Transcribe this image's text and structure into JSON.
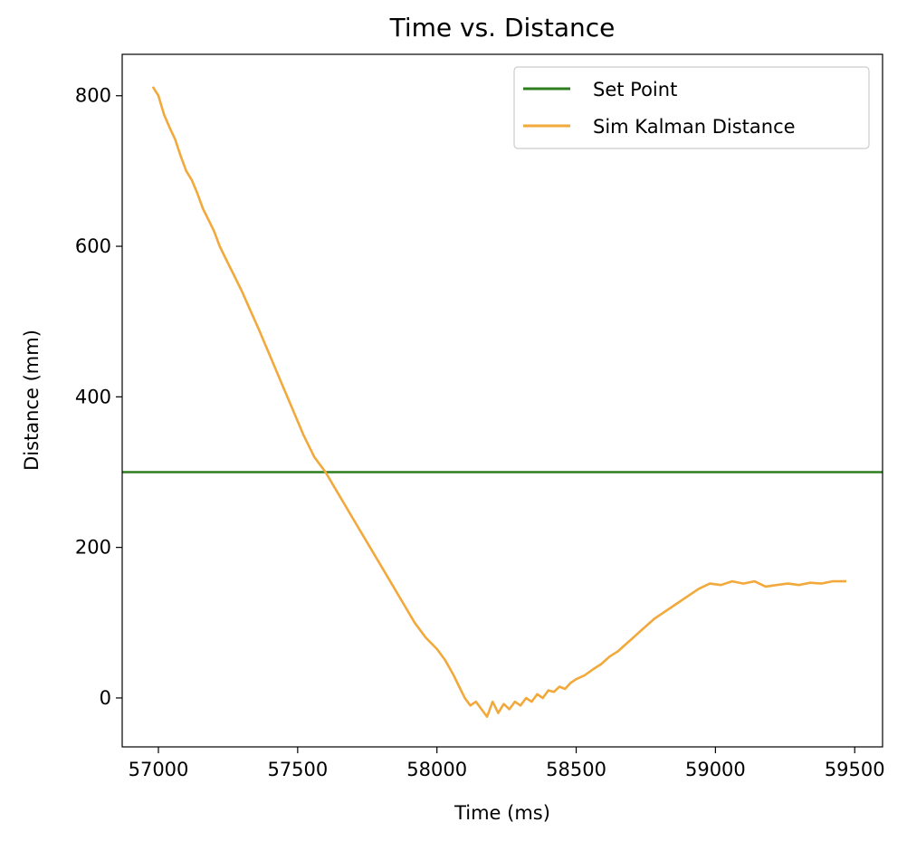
{
  "chart_data": {
    "type": "line",
    "title": "Time vs. Distance",
    "xlabel": "Time (ms)",
    "ylabel": "Distance (mm)",
    "xlim": [
      56870,
      59600
    ],
    "ylim": [
      -65,
      855
    ],
    "xticks": [
      57000,
      57500,
      58000,
      58500,
      59000,
      59500
    ],
    "yticks": [
      0,
      200,
      400,
      600,
      800
    ],
    "grid": false,
    "legend_position": "top-right",
    "series": [
      {
        "name": "Set Point",
        "color": "#2e7d1e",
        "kind": "hline",
        "x": [
          56870,
          59600
        ],
        "y": [
          300,
          300
        ]
      },
      {
        "name": "Sim Kalman Distance",
        "color": "#f2a93b",
        "kind": "line",
        "x": [
          56980,
          57000,
          57020,
          57040,
          57060,
          57080,
          57100,
          57120,
          57140,
          57160,
          57180,
          57200,
          57220,
          57240,
          57260,
          57280,
          57300,
          57330,
          57360,
          57400,
          57440,
          57480,
          57520,
          57560,
          57600,
          57640,
          57680,
          57720,
          57760,
          57800,
          57840,
          57880,
          57920,
          57960,
          58000,
          58030,
          58060,
          58080,
          58100,
          58120,
          58140,
          58160,
          58180,
          58200,
          58220,
          58240,
          58260,
          58280,
          58300,
          58320,
          58340,
          58360,
          58380,
          58400,
          58420,
          58440,
          58460,
          58480,
          58500,
          58530,
          58560,
          58590,
          58620,
          58650,
          58680,
          58710,
          58740,
          58780,
          58820,
          58860,
          58900,
          58940,
          58980,
          59020,
          59060,
          59100,
          59140,
          59180,
          59220,
          59260,
          59300,
          59340,
          59380,
          59420,
          59470
        ],
        "y": [
          812,
          800,
          775,
          758,
          742,
          720,
          700,
          688,
          670,
          650,
          635,
          620,
          600,
          585,
          570,
          555,
          540,
          515,
          490,
          455,
          420,
          385,
          350,
          320,
          300,
          275,
          250,
          225,
          200,
          175,
          150,
          125,
          100,
          80,
          65,
          50,
          30,
          15,
          0,
          -10,
          -5,
          -15,
          -25,
          -5,
          -20,
          -8,
          -15,
          -5,
          -10,
          0,
          -5,
          5,
          0,
          10,
          8,
          15,
          12,
          20,
          25,
          30,
          38,
          45,
          55,
          62,
          72,
          82,
          92,
          105,
          115,
          125,
          135,
          145,
          152,
          150,
          155,
          152,
          155,
          148,
          150,
          152,
          150,
          153,
          152,
          155,
          155
        ]
      }
    ]
  }
}
